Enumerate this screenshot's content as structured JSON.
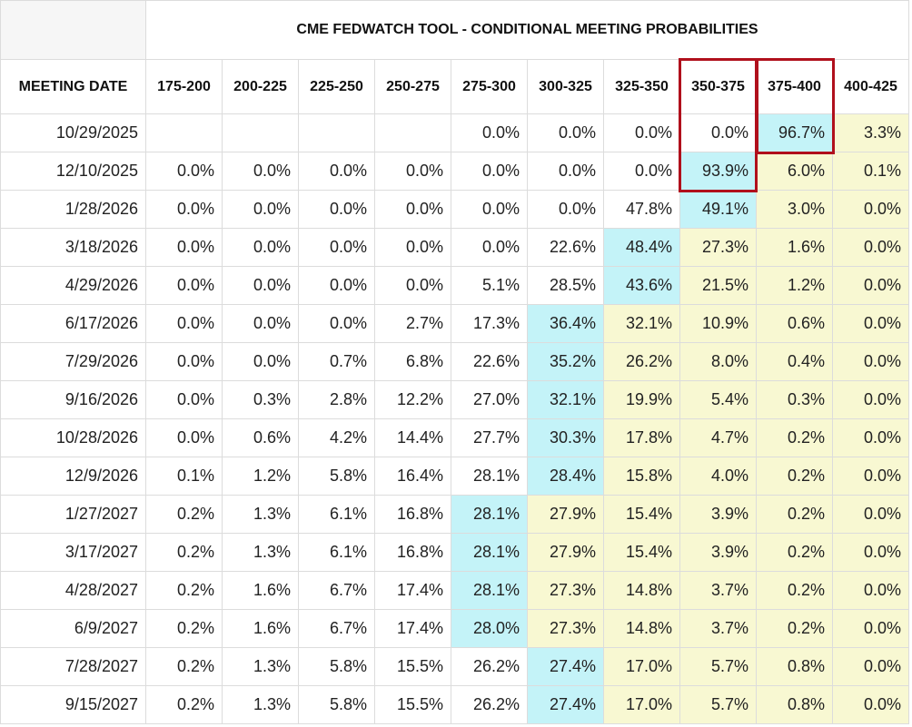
{
  "header": {
    "title": "CME FEDWATCH TOOL - CONDITIONAL MEETING PROBABILITIES"
  },
  "table": {
    "columns": [
      "MEETING DATE",
      "175-200",
      "200-225",
      "225-250",
      "250-275",
      "275-300",
      "300-325",
      "325-350",
      "350-375",
      "375-400",
      "400-425"
    ],
    "rows": [
      [
        "10/29/2025",
        null,
        null,
        null,
        null,
        "0.0%",
        "0.0%",
        "0.0%",
        "0.0%",
        "96.7%",
        "3.3%"
      ],
      [
        "12/10/2025",
        "0.0%",
        "0.0%",
        "0.0%",
        "0.0%",
        "0.0%",
        "0.0%",
        "0.0%",
        "93.9%",
        "6.0%",
        "0.1%"
      ],
      [
        "1/28/2026",
        "0.0%",
        "0.0%",
        "0.0%",
        "0.0%",
        "0.0%",
        "0.0%",
        "47.8%",
        "49.1%",
        "3.0%",
        "0.0%"
      ],
      [
        "3/18/2026",
        "0.0%",
        "0.0%",
        "0.0%",
        "0.0%",
        "0.0%",
        "22.6%",
        "48.4%",
        "27.3%",
        "1.6%",
        "0.0%"
      ],
      [
        "4/29/2026",
        "0.0%",
        "0.0%",
        "0.0%",
        "0.0%",
        "5.1%",
        "28.5%",
        "43.6%",
        "21.5%",
        "1.2%",
        "0.0%"
      ],
      [
        "6/17/2026",
        "0.0%",
        "0.0%",
        "0.0%",
        "2.7%",
        "17.3%",
        "36.4%",
        "32.1%",
        "10.9%",
        "0.6%",
        "0.0%"
      ],
      [
        "7/29/2026",
        "0.0%",
        "0.0%",
        "0.7%",
        "6.8%",
        "22.6%",
        "35.2%",
        "26.2%",
        "8.0%",
        "0.4%",
        "0.0%"
      ],
      [
        "9/16/2026",
        "0.0%",
        "0.3%",
        "2.8%",
        "12.2%",
        "27.0%",
        "32.1%",
        "19.9%",
        "5.4%",
        "0.3%",
        "0.0%"
      ],
      [
        "10/28/2026",
        "0.0%",
        "0.6%",
        "4.2%",
        "14.4%",
        "27.7%",
        "30.3%",
        "17.8%",
        "4.7%",
        "0.2%",
        "0.0%"
      ],
      [
        "12/9/2026",
        "0.1%",
        "1.2%",
        "5.8%",
        "16.4%",
        "28.1%",
        "28.4%",
        "15.8%",
        "4.0%",
        "0.2%",
        "0.0%"
      ],
      [
        "1/27/2027",
        "0.2%",
        "1.3%",
        "6.1%",
        "16.8%",
        "28.1%",
        "27.9%",
        "15.4%",
        "3.9%",
        "0.2%",
        "0.0%"
      ],
      [
        "3/17/2027",
        "0.2%",
        "1.3%",
        "6.1%",
        "16.8%",
        "28.1%",
        "27.9%",
        "15.4%",
        "3.9%",
        "0.2%",
        "0.0%"
      ],
      [
        "4/28/2027",
        "0.2%",
        "1.6%",
        "6.7%",
        "17.4%",
        "28.1%",
        "27.3%",
        "14.8%",
        "3.7%",
        "0.2%",
        "0.0%"
      ],
      [
        "6/9/2027",
        "0.2%",
        "1.6%",
        "6.7%",
        "17.4%",
        "28.0%",
        "27.3%",
        "14.8%",
        "3.7%",
        "0.2%",
        "0.0%"
      ],
      [
        "7/28/2027",
        "0.2%",
        "1.3%",
        "5.8%",
        "15.5%",
        "26.2%",
        "27.4%",
        "17.0%",
        "5.7%",
        "0.8%",
        "0.0%"
      ],
      [
        "9/15/2027",
        "0.2%",
        "1.3%",
        "5.8%",
        "15.5%",
        "26.2%",
        "27.4%",
        "17.0%",
        "5.7%",
        "0.8%",
        "0.0%"
      ]
    ]
  }
}
